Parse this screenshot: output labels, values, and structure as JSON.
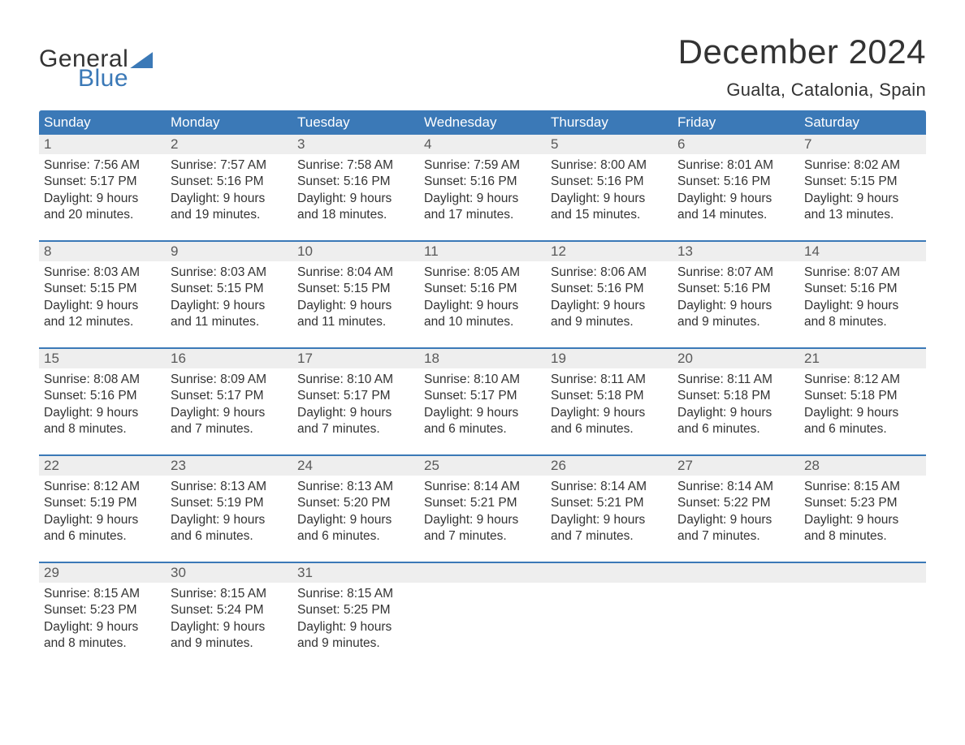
{
  "logo": {
    "text1": "General",
    "text2": "Blue"
  },
  "title": "December 2024",
  "location": "Gualta, Catalonia, Spain",
  "colors": {
    "header_bg": "#3b79b7",
    "header_text": "#ffffff",
    "daynum_bg": "#eeeeee",
    "daynum_text": "#595959",
    "body_text": "#333333",
    "border": "#3b79b7",
    "page_bg": "#ffffff"
  },
  "weekdays": [
    "Sunday",
    "Monday",
    "Tuesday",
    "Wednesday",
    "Thursday",
    "Friday",
    "Saturday"
  ],
  "days": [
    {
      "n": "1",
      "sunrise": "7:56 AM",
      "sunset": "5:17 PM",
      "dl1": "Daylight: 9 hours",
      "dl2": "and 20 minutes."
    },
    {
      "n": "2",
      "sunrise": "7:57 AM",
      "sunset": "5:16 PM",
      "dl1": "Daylight: 9 hours",
      "dl2": "and 19 minutes."
    },
    {
      "n": "3",
      "sunrise": "7:58 AM",
      "sunset": "5:16 PM",
      "dl1": "Daylight: 9 hours",
      "dl2": "and 18 minutes."
    },
    {
      "n": "4",
      "sunrise": "7:59 AM",
      "sunset": "5:16 PM",
      "dl1": "Daylight: 9 hours",
      "dl2": "and 17 minutes."
    },
    {
      "n": "5",
      "sunrise": "8:00 AM",
      "sunset": "5:16 PM",
      "dl1": "Daylight: 9 hours",
      "dl2": "and 15 minutes."
    },
    {
      "n": "6",
      "sunrise": "8:01 AM",
      "sunset": "5:16 PM",
      "dl1": "Daylight: 9 hours",
      "dl2": "and 14 minutes."
    },
    {
      "n": "7",
      "sunrise": "8:02 AM",
      "sunset": "5:15 PM",
      "dl1": "Daylight: 9 hours",
      "dl2": "and 13 minutes."
    },
    {
      "n": "8",
      "sunrise": "8:03 AM",
      "sunset": "5:15 PM",
      "dl1": "Daylight: 9 hours",
      "dl2": "and 12 minutes."
    },
    {
      "n": "9",
      "sunrise": "8:03 AM",
      "sunset": "5:15 PM",
      "dl1": "Daylight: 9 hours",
      "dl2": "and 11 minutes."
    },
    {
      "n": "10",
      "sunrise": "8:04 AM",
      "sunset": "5:15 PM",
      "dl1": "Daylight: 9 hours",
      "dl2": "and 11 minutes."
    },
    {
      "n": "11",
      "sunrise": "8:05 AM",
      "sunset": "5:16 PM",
      "dl1": "Daylight: 9 hours",
      "dl2": "and 10 minutes."
    },
    {
      "n": "12",
      "sunrise": "8:06 AM",
      "sunset": "5:16 PM",
      "dl1": "Daylight: 9 hours",
      "dl2": "and 9 minutes."
    },
    {
      "n": "13",
      "sunrise": "8:07 AM",
      "sunset": "5:16 PM",
      "dl1": "Daylight: 9 hours",
      "dl2": "and 9 minutes."
    },
    {
      "n": "14",
      "sunrise": "8:07 AM",
      "sunset": "5:16 PM",
      "dl1": "Daylight: 9 hours",
      "dl2": "and 8 minutes."
    },
    {
      "n": "15",
      "sunrise": "8:08 AM",
      "sunset": "5:16 PM",
      "dl1": "Daylight: 9 hours",
      "dl2": "and 8 minutes."
    },
    {
      "n": "16",
      "sunrise": "8:09 AM",
      "sunset": "5:17 PM",
      "dl1": "Daylight: 9 hours",
      "dl2": "and 7 minutes."
    },
    {
      "n": "17",
      "sunrise": "8:10 AM",
      "sunset": "5:17 PM",
      "dl1": "Daylight: 9 hours",
      "dl2": "and 7 minutes."
    },
    {
      "n": "18",
      "sunrise": "8:10 AM",
      "sunset": "5:17 PM",
      "dl1": "Daylight: 9 hours",
      "dl2": "and 6 minutes."
    },
    {
      "n": "19",
      "sunrise": "8:11 AM",
      "sunset": "5:18 PM",
      "dl1": "Daylight: 9 hours",
      "dl2": "and 6 minutes."
    },
    {
      "n": "20",
      "sunrise": "8:11 AM",
      "sunset": "5:18 PM",
      "dl1": "Daylight: 9 hours",
      "dl2": "and 6 minutes."
    },
    {
      "n": "21",
      "sunrise": "8:12 AM",
      "sunset": "5:18 PM",
      "dl1": "Daylight: 9 hours",
      "dl2": "and 6 minutes."
    },
    {
      "n": "22",
      "sunrise": "8:12 AM",
      "sunset": "5:19 PM",
      "dl1": "Daylight: 9 hours",
      "dl2": "and 6 minutes."
    },
    {
      "n": "23",
      "sunrise": "8:13 AM",
      "sunset": "5:19 PM",
      "dl1": "Daylight: 9 hours",
      "dl2": "and 6 minutes."
    },
    {
      "n": "24",
      "sunrise": "8:13 AM",
      "sunset": "5:20 PM",
      "dl1": "Daylight: 9 hours",
      "dl2": "and 6 minutes."
    },
    {
      "n": "25",
      "sunrise": "8:14 AM",
      "sunset": "5:21 PM",
      "dl1": "Daylight: 9 hours",
      "dl2": "and 7 minutes."
    },
    {
      "n": "26",
      "sunrise": "8:14 AM",
      "sunset": "5:21 PM",
      "dl1": "Daylight: 9 hours",
      "dl2": "and 7 minutes."
    },
    {
      "n": "27",
      "sunrise": "8:14 AM",
      "sunset": "5:22 PM",
      "dl1": "Daylight: 9 hours",
      "dl2": "and 7 minutes."
    },
    {
      "n": "28",
      "sunrise": "8:15 AM",
      "sunset": "5:23 PM",
      "dl1": "Daylight: 9 hours",
      "dl2": "and 8 minutes."
    },
    {
      "n": "29",
      "sunrise": "8:15 AM",
      "sunset": "5:23 PM",
      "dl1": "Daylight: 9 hours",
      "dl2": "and 8 minutes."
    },
    {
      "n": "30",
      "sunrise": "8:15 AM",
      "sunset": "5:24 PM",
      "dl1": "Daylight: 9 hours",
      "dl2": "and 9 minutes."
    },
    {
      "n": "31",
      "sunrise": "8:15 AM",
      "sunset": "5:25 PM",
      "dl1": "Daylight: 9 hours",
      "dl2": "and 9 minutes."
    }
  ],
  "labels": {
    "sunrise": "Sunrise: ",
    "sunset": "Sunset: "
  }
}
